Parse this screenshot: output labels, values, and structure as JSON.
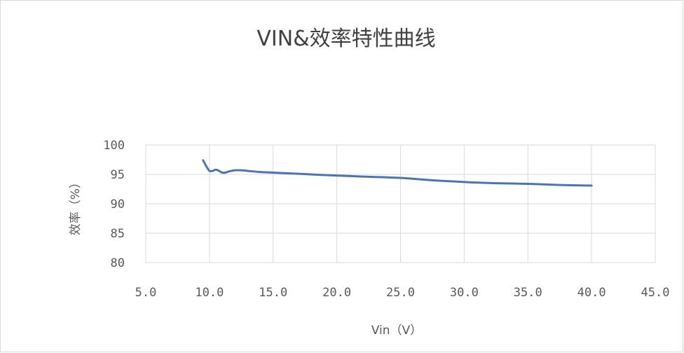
{
  "chart_data": {
    "type": "line",
    "title": "VIN&效率特性曲线",
    "xlabel": "Vin（V）",
    "ylabel": "效率（%）",
    "xlim": [
      5.0,
      45.0
    ],
    "ylim": [
      80,
      100
    ],
    "x_ticks": [
      "5.0",
      "10.0",
      "15.0",
      "20.0",
      "25.0",
      "30.0",
      "35.0",
      "40.0",
      "45.0"
    ],
    "y_ticks": [
      "80",
      "85",
      "90",
      "95",
      "100"
    ],
    "grid": true,
    "legend": "none",
    "line_color": "#4a75b5",
    "series": [
      {
        "x": [
          9.5,
          9.75,
          10.0,
          10.25,
          10.5,
          10.75,
          11.0,
          11.25,
          11.5,
          11.75,
          12.0,
          12.5,
          13.0,
          14.0,
          15.0,
          17.0,
          20.0,
          22.5,
          25.0,
          27.5,
          30.0,
          32.5,
          35.0,
          37.5,
          40.0
        ],
        "values": [
          97.4,
          96.4,
          95.6,
          95.6,
          95.8,
          95.6,
          95.3,
          95.3,
          95.5,
          95.6,
          95.7,
          95.7,
          95.6,
          95.4,
          95.3,
          95.1,
          94.8,
          94.6,
          94.4,
          94.0,
          93.7,
          93.5,
          93.4,
          93.2,
          93.1
        ]
      }
    ]
  }
}
